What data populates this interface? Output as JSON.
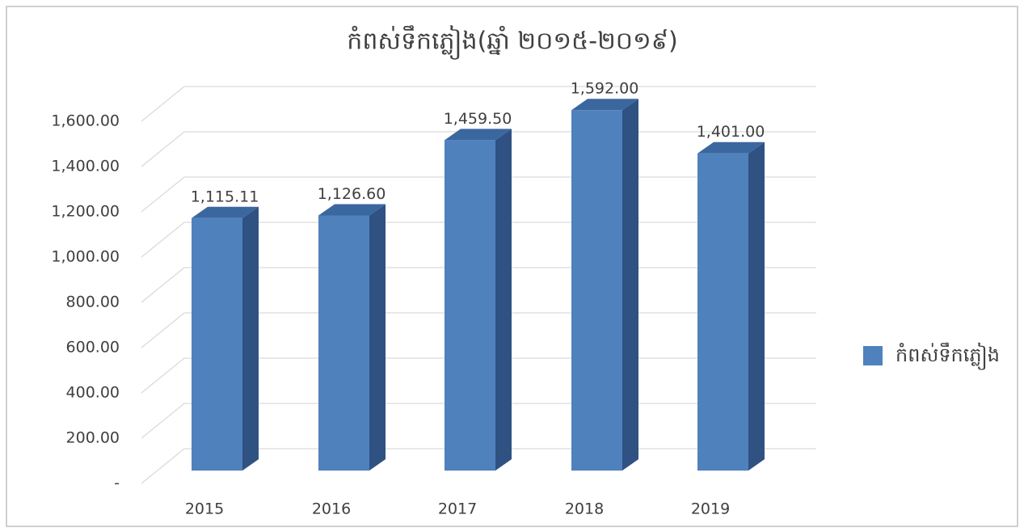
{
  "chart_data": {
    "type": "bar3d",
    "title": "កំពស់ទឹកភ្លៀង(ឆ្នាំ ២០១៥-២០១៩)",
    "categories": [
      "2015",
      "2016",
      "2017",
      "2018",
      "2019"
    ],
    "series": [
      {
        "name": "កំពស់ទឹកភ្លៀង",
        "color": "#4f81bd",
        "values": [
          1115.11,
          1126.6,
          1459.5,
          1592.0,
          1401.0
        ],
        "value_labels": [
          "1,115.11",
          "1,126.60",
          "1,459.50",
          "1,592.00",
          "1,401.00"
        ]
      }
    ],
    "ylim": [
      0,
      1600
    ],
    "yticks": [
      {
        "value": 0,
        "label": "-"
      },
      {
        "value": 200,
        "label": "200.00"
      },
      {
        "value": 400,
        "label": "400.00"
      },
      {
        "value": 600,
        "label": "600.00"
      },
      {
        "value": 800,
        "label": "800.00"
      },
      {
        "value": 1000,
        "label": "1,000.00"
      },
      {
        "value": 1200,
        "label": "1,200.00"
      },
      {
        "value": 1400,
        "label": "1,400.00"
      },
      {
        "value": 1600,
        "label": "1,600.00"
      }
    ],
    "grid": true,
    "legend": "right"
  }
}
